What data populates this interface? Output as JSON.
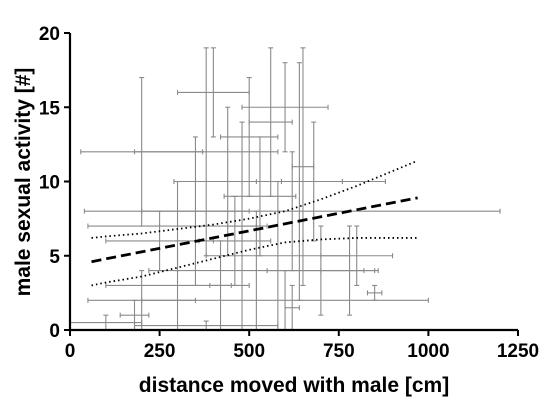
{
  "chart_data": {
    "type": "scatter",
    "xlabel": "distance moved with male [cm]",
    "ylabel": "male sexual activity [#]",
    "xlim": [
      0,
      1250
    ],
    "ylim": [
      0,
      20
    ],
    "x_ticks": [
      "0",
      "250",
      "500",
      "750",
      "1000",
      "1250"
    ],
    "y_ticks": [
      "0",
      "5",
      "10",
      "15",
      "20"
    ],
    "x_tick_values": [
      0,
      250,
      500,
      750,
      1000,
      1250
    ],
    "y_tick_values": [
      0,
      5,
      10,
      15,
      20
    ],
    "grid": false,
    "colors": {
      "error_bars": "#8a8a8a",
      "lines": "#000000"
    },
    "points": [
      {
        "x": 200,
        "y": 12,
        "xerr": 170,
        "yerr": 5
      },
      {
        "x": 380,
        "y": 12,
        "xerr": 200,
        "yerr": 7
      },
      {
        "x": 560,
        "y": 14,
        "xerr": 60,
        "yerr": 5
      },
      {
        "x": 400,
        "y": 16,
        "xerr": 100,
        "yerr": 3
      },
      {
        "x": 600,
        "y": 15,
        "xerr": 120,
        "yerr": 3
      },
      {
        "x": 500,
        "y": 13,
        "xerr": 80,
        "yerr": 4
      },
      {
        "x": 440,
        "y": 10,
        "xerr": 150,
        "yerr": 5
      },
      {
        "x": 640,
        "y": 10,
        "xerr": 120,
        "yerr": 8
      },
      {
        "x": 350,
        "y": 8,
        "xerr": 150,
        "yerr": 5
      },
      {
        "x": 530,
        "y": 9,
        "xerr": 100,
        "yerr": 4
      },
      {
        "x": 300,
        "y": 7,
        "xerr": 250,
        "yerr": 3
      },
      {
        "x": 680,
        "y": 10,
        "xerr": 200,
        "yerr": 4
      },
      {
        "x": 250,
        "y": 6,
        "xerr": 150,
        "yerr": 2
      },
      {
        "x": 620,
        "y": 8,
        "xerr": 580,
        "yerr": 4
      },
      {
        "x": 460,
        "y": 6,
        "xerr": 100,
        "yerr": 3
      },
      {
        "x": 800,
        "y": 5,
        "xerr": 100,
        "yerr": 2
      },
      {
        "x": 580,
        "y": 5,
        "xerr": 200,
        "yerr": 5
      },
      {
        "x": 700,
        "y": 4,
        "xerr": 150,
        "yerr": 3
      },
      {
        "x": 520,
        "y": 4,
        "xerr": 300,
        "yerr": 4
      },
      {
        "x": 300,
        "y": 3,
        "xerr": 200,
        "yerr": 3
      },
      {
        "x": 200,
        "y": 2,
        "xerr": 150,
        "yerr": 2
      },
      {
        "x": 600,
        "y": 2,
        "xerr": 400,
        "yerr": 2
      },
      {
        "x": 620,
        "y": 1.5,
        "xerr": 20,
        "yerr": 1.5
      },
      {
        "x": 850,
        "y": 2.5,
        "xerr": 20,
        "yerr": 0.5
      },
      {
        "x": 780,
        "y": 4,
        "xerr": 80,
        "yerr": 3
      },
      {
        "x": 100,
        "y": 0.5,
        "xerr": 100,
        "yerr": 0.5
      },
      {
        "x": 380,
        "y": 0.3,
        "xerr": 200,
        "yerr": 0.3
      },
      {
        "x": 650,
        "y": 11,
        "xerr": 30,
        "yerr": 8
      },
      {
        "x": 480,
        "y": 7,
        "xerr": 40,
        "yerr": 7
      },
      {
        "x": 420,
        "y": 3,
        "xerr": 30,
        "yerr": 3
      },
      {
        "x": 180,
        "y": 1,
        "xerr": 40,
        "yerr": 1
      }
    ],
    "fit_line": {
      "x": [
        60,
        970
      ],
      "y": [
        4.6,
        8.9
      ]
    },
    "ci_upper": {
      "x": [
        60,
        100,
        200,
        300,
        400,
        500,
        600,
        700,
        800,
        900,
        970
      ],
      "y": [
        6.2,
        6.3,
        6.5,
        6.8,
        7.1,
        7.5,
        8.0,
        8.8,
        9.7,
        10.7,
        11.4
      ]
    },
    "ci_lower": {
      "x": [
        60,
        100,
        200,
        300,
        400,
        500,
        600,
        700,
        800,
        900,
        970
      ],
      "y": [
        3.0,
        3.2,
        3.6,
        4.2,
        4.8,
        5.4,
        5.9,
        6.1,
        6.2,
        6.2,
        6.2
      ]
    }
  }
}
